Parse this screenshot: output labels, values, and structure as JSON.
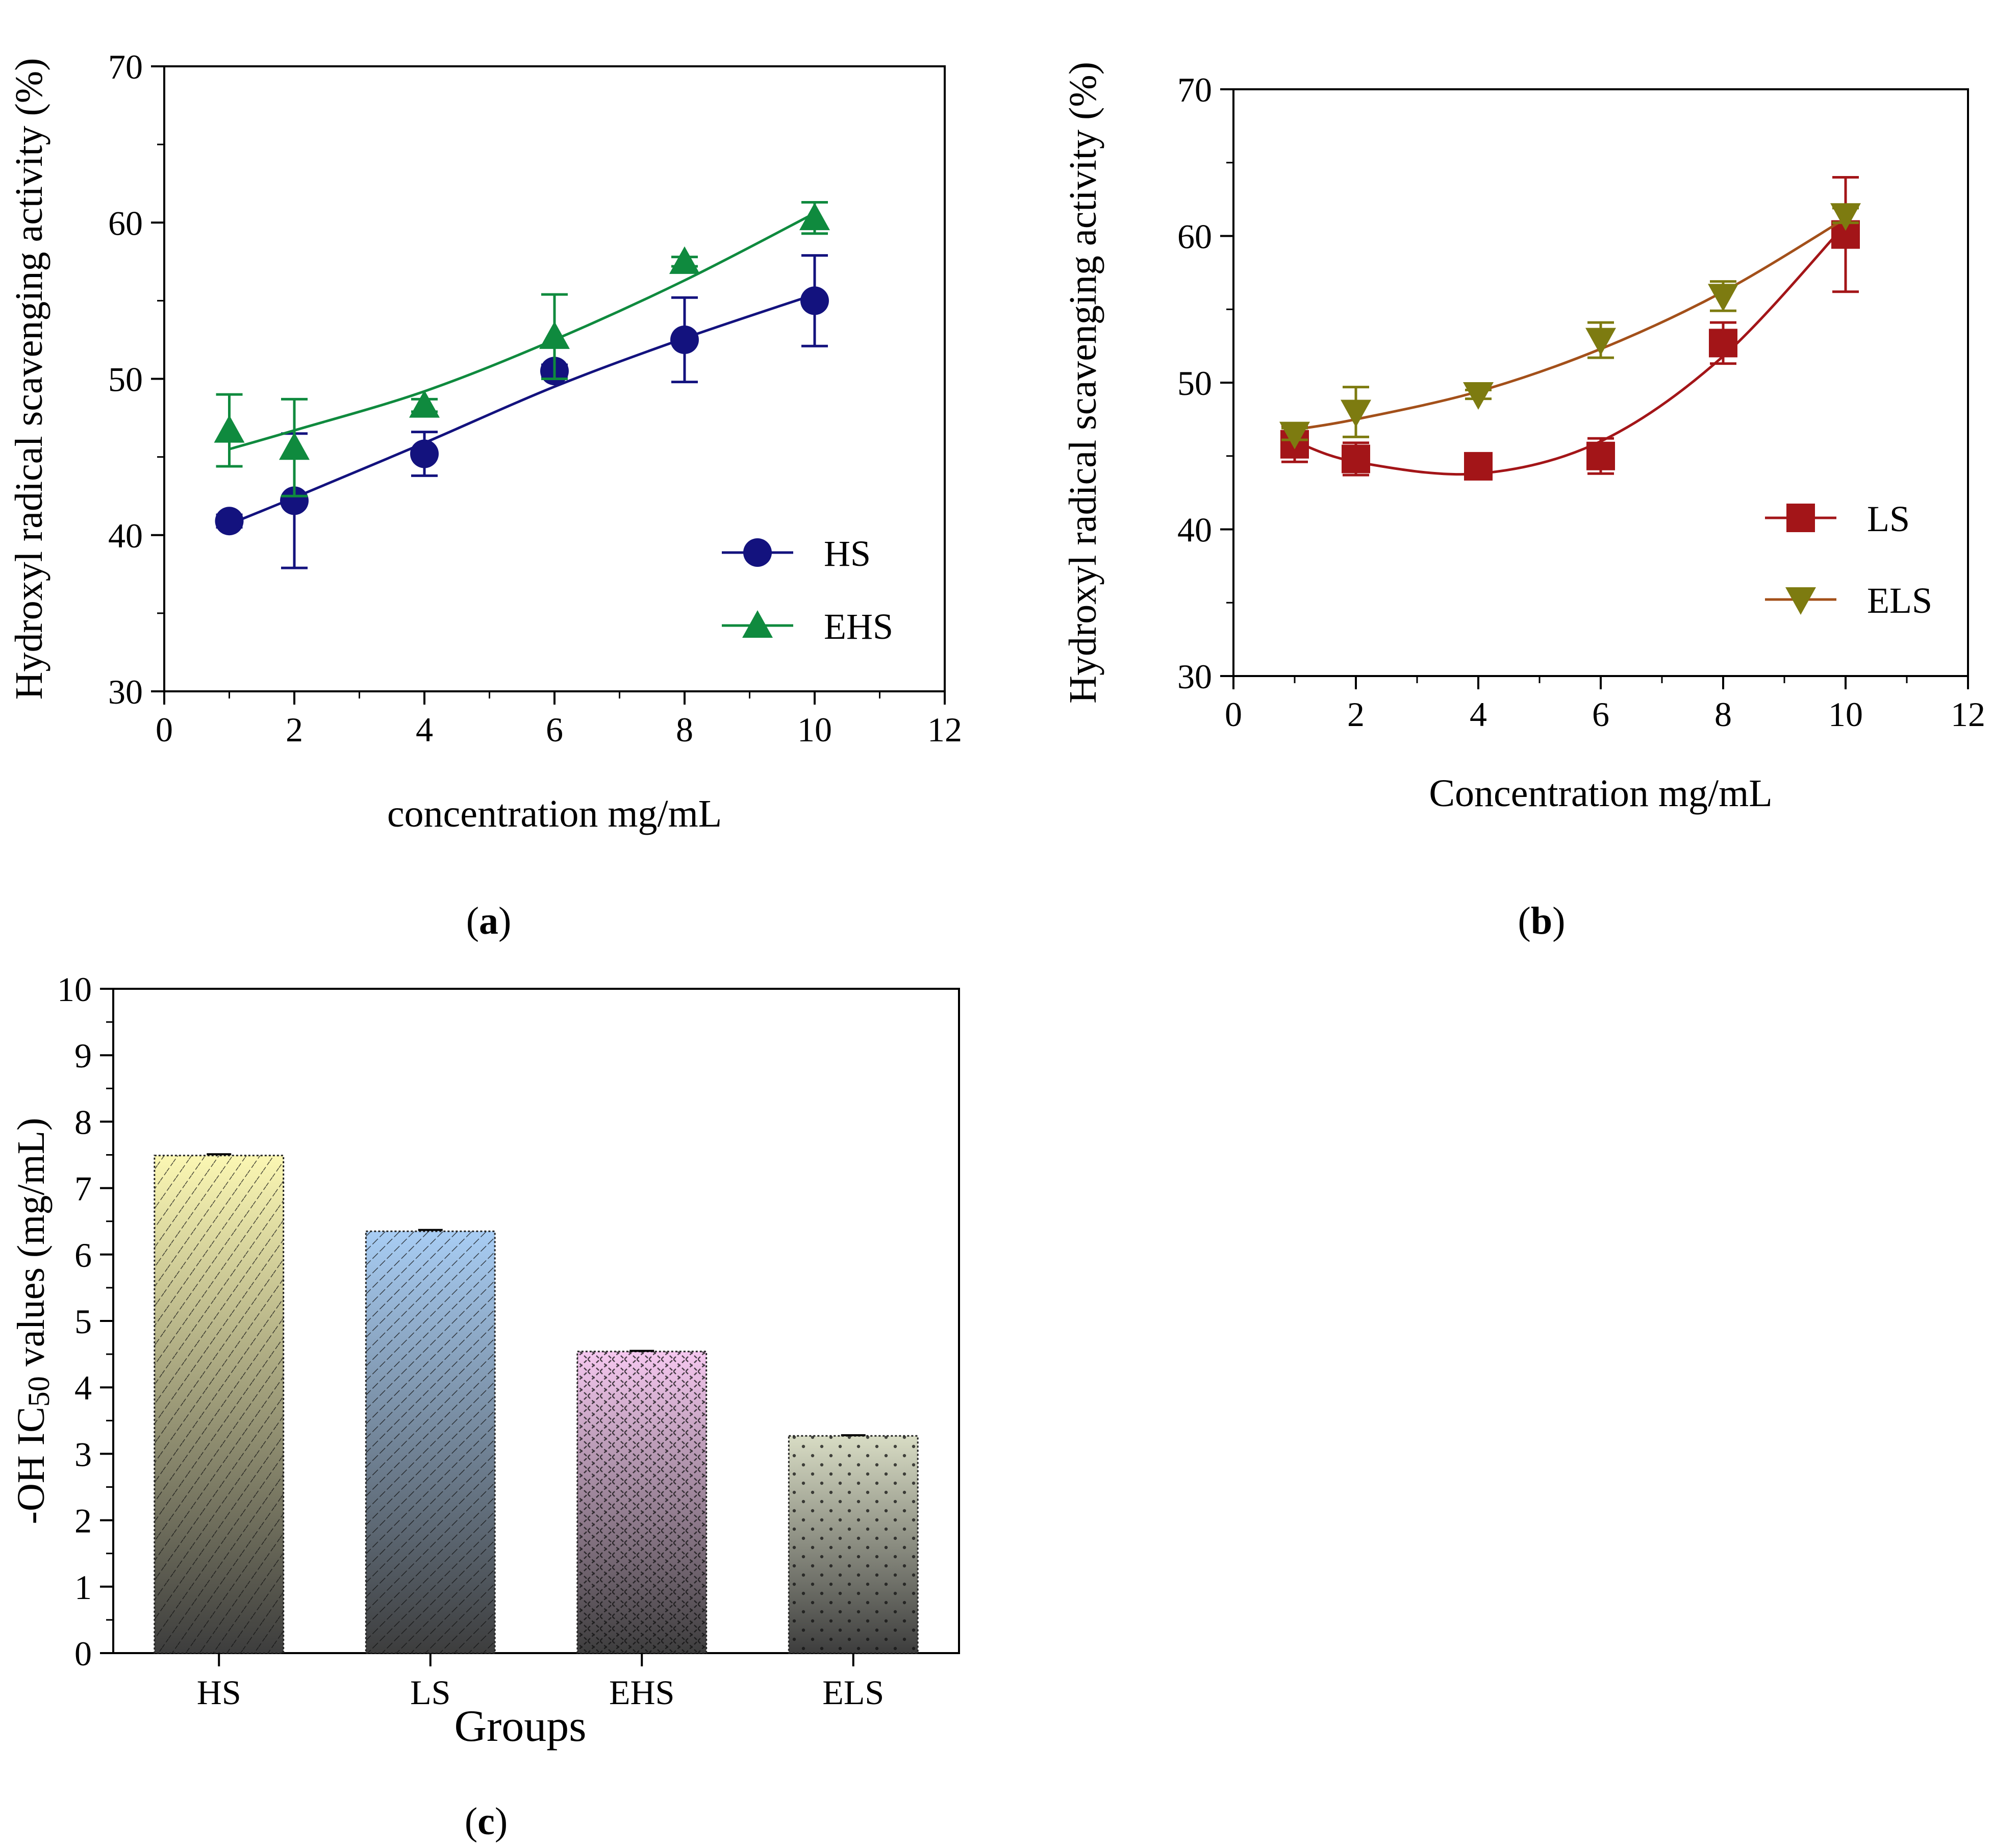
{
  "panels": {
    "a_label": "a",
    "b_label": "b",
    "c_label": "c"
  },
  "chart_data": [
    {
      "id": "a",
      "type": "line",
      "title": "",
      "xlabel": "concentration mg/mL",
      "ylabel": "Hydroxyl radical scavenging activity (%)",
      "xlim": [
        0,
        12
      ],
      "ylim": [
        30,
        70
      ],
      "xticks": [
        "0",
        "2",
        "4",
        "6",
        "8",
        "10",
        "12"
      ],
      "yticks": [
        "30",
        "40",
        "50",
        "60",
        "70"
      ],
      "legend_position": "bottom-right",
      "series": [
        {
          "name": "HS",
          "color": "#13127e",
          "marker": "circle",
          "x": [
            1,
            2,
            4,
            6,
            8,
            10
          ],
          "y": [
            40.9,
            42.2,
            45.2,
            50.5,
            52.5,
            55.0
          ],
          "err": [
            0.4,
            4.3,
            1.4,
            0.4,
            2.7,
            2.9
          ],
          "fit": [
            40.7,
            42.4,
            45.9,
            49.5,
            52.6,
            55.4
          ]
        },
        {
          "name": "EHS",
          "color": "#0f8a3e",
          "marker": "triangle-up",
          "x": [
            1,
            2,
            4,
            6,
            8,
            10
          ],
          "y": [
            46.7,
            45.6,
            48.3,
            52.7,
            57.5,
            60.3
          ],
          "err": [
            2.3,
            3.1,
            0.4,
            2.7,
            0.3,
            1.0
          ],
          "fit": [
            45.5,
            46.7,
            49.2,
            52.5,
            56.3,
            60.6
          ]
        }
      ]
    },
    {
      "id": "b",
      "type": "line",
      "title": "",
      "xlabel": "Concentration mg/mL",
      "ylabel": "Hydroxyl radical scavenging activity  (%)",
      "xlim": [
        0,
        12
      ],
      "ylim": [
        30,
        70
      ],
      "xticks": [
        "0",
        "2",
        "4",
        "6",
        "8",
        "10",
        "12"
      ],
      "yticks": [
        "30",
        "40",
        "50",
        "60",
        "70"
      ],
      "legend_position": "right",
      "series": [
        {
          "name": "LS",
          "color": "#a31518",
          "marker": "square",
          "x": [
            1,
            2,
            4,
            6,
            8,
            10
          ],
          "y": [
            45.8,
            44.8,
            44.3,
            45.0,
            52.7,
            60.1
          ],
          "err": [
            1.2,
            1.1,
            0.3,
            1.2,
            1.4,
            3.9
          ],
          "fit": [
            46.0,
            44.6,
            43.8,
            46.0,
            51.8,
            60.8
          ]
        },
        {
          "name": "ELS",
          "color": "#7d7b10",
          "marker": "triangle-down",
          "x": [
            1,
            2,
            4,
            6,
            8,
            10
          ],
          "y": [
            46.5,
            48.0,
            49.2,
            52.9,
            55.9,
            61.4
          ],
          "err": [
            0.4,
            1.7,
            0.3,
            1.2,
            1.0,
            0.5
          ],
          "fit": [
            46.8,
            47.5,
            49.4,
            52.3,
            56.2,
            61.2
          ],
          "line_color": "#a3501a"
        }
      ]
    },
    {
      "id": "c",
      "type": "bar",
      "title": "",
      "xlabel": "Groups",
      "ylabel": "-OH IC50 values (mg/mL)",
      "ylabel_main": "-OH IC",
      "ylabel_sub": "50",
      "ylabel_rest": " values (mg/mL)",
      "ylim": [
        0,
        10
      ],
      "yticks": [
        "0",
        "1",
        "2",
        "3",
        "4",
        "5",
        "6",
        "7",
        "8",
        "9",
        "10"
      ],
      "categories": [
        "HS",
        "LS",
        "EHS",
        "ELS"
      ],
      "values": [
        7.49,
        6.35,
        4.54,
        3.27
      ],
      "err": [
        0.02,
        0.02,
        0.01,
        0.01
      ],
      "colors_top": [
        "#fbf7b3",
        "#a8cdf4",
        "#f6c8f0",
        "#d8dcc4"
      ],
      "colors_bottom": [
        "#3d3d3d",
        "#3d3d3d",
        "#3d3d3d",
        "#3d3d3d"
      ]
    }
  ]
}
